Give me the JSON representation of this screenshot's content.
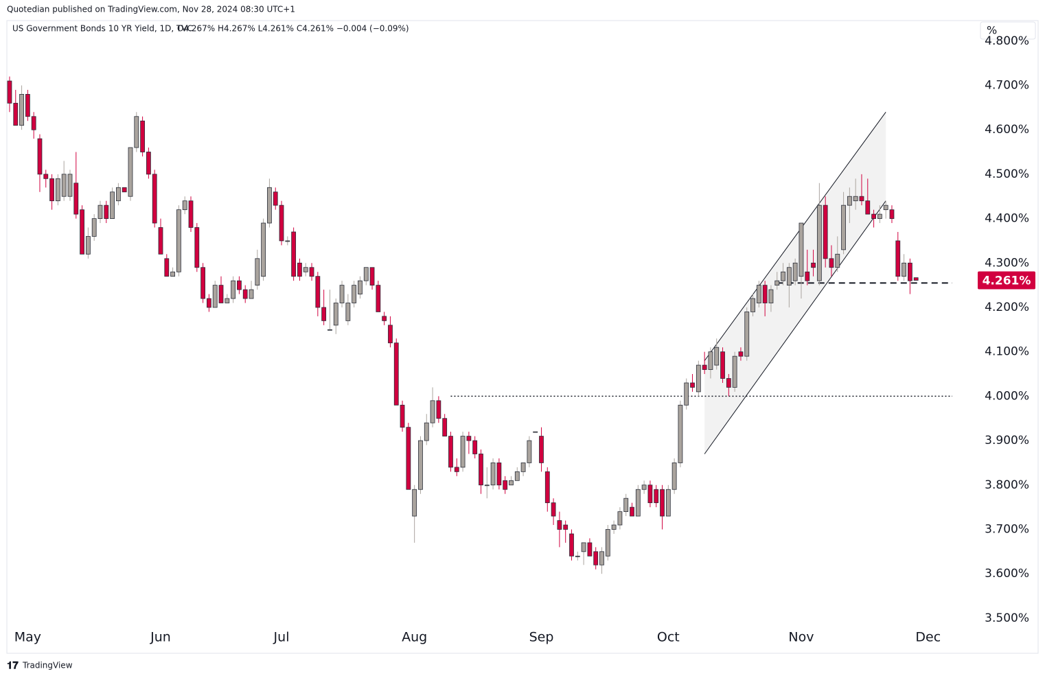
{
  "header": "Quotedian published on TradingView.com, Nov 28, 2024 08:30 UTC+1",
  "footer": "TradingView",
  "unit_button": "%",
  "chart_data": {
    "type": "candlestick",
    "title": "US Government Bonds 10 YR Yield, 1D, TVC",
    "ohlc_summary": "O4.267%  H4.267%  L4.261%  C4.261%  −0.004 (−0.09%)",
    "up_color": "#aaa49e",
    "down_color": "#d1003f",
    "xlim": [
      -0.45,
      159.75
    ],
    "xticks": [
      {
        "value": 3,
        "label": "May"
      },
      {
        "value": 25,
        "label": "Jun"
      },
      {
        "value": 45,
        "label": "Jul"
      },
      {
        "value": 67,
        "label": "Aug"
      },
      {
        "value": 88,
        "label": "Sep"
      },
      {
        "value": 109,
        "label": "Oct"
      },
      {
        "value": 131,
        "label": "Nov"
      },
      {
        "value": 152,
        "label": "Dec"
      }
    ],
    "ylim": [
      3.421,
      4.846
    ],
    "yticks": [
      {
        "value": 3.5,
        "label": "3.500%"
      },
      {
        "value": 3.6,
        "label": "3.600%"
      },
      {
        "value": 3.7,
        "label": "3.700%"
      },
      {
        "value": 3.8,
        "label": "3.800%"
      },
      {
        "value": 3.9,
        "label": "3.900%"
      },
      {
        "value": 4.0,
        "label": "4.000%"
      },
      {
        "value": 4.1,
        "label": "4.100%"
      },
      {
        "value": 4.2,
        "label": "4.200%"
      },
      {
        "value": 4.3,
        "label": "4.300%"
      },
      {
        "value": 4.4,
        "label": "4.400%"
      },
      {
        "value": 4.5,
        "label": "4.500%"
      },
      {
        "value": 4.6,
        "label": "4.600%"
      },
      {
        "value": 4.7,
        "label": "4.700%"
      },
      {
        "value": 4.8,
        "label": "4.800%"
      }
    ],
    "last_price": {
      "value": 4.261,
      "label": "4.261%"
    },
    "channel": {
      "x": [
        115,
        145
      ],
      "upper": [
        4.08,
        4.64
      ],
      "lower": [
        3.87,
        4.44
      ]
    },
    "levels": [
      {
        "value": 4.0,
        "x": [
          73,
          156
        ],
        "style": "dotted"
      },
      {
        "value": 4.255,
        "x": [
          127,
          156
        ],
        "style": "dashed"
      }
    ],
    "ohlc": [
      [
        4.71,
        4.72,
        4.64,
        4.66
      ],
      [
        4.66,
        4.69,
        4.61,
        4.61
      ],
      [
        4.61,
        4.7,
        4.6,
        4.68
      ],
      [
        4.68,
        4.69,
        4.62,
        4.63
      ],
      [
        4.63,
        4.64,
        4.58,
        4.6
      ],
      [
        4.58,
        4.59,
        4.46,
        4.5
      ],
      [
        4.5,
        4.51,
        4.47,
        4.49
      ],
      [
        4.49,
        4.5,
        4.42,
        4.44
      ],
      [
        4.44,
        4.5,
        4.43,
        4.49
      ],
      [
        4.45,
        4.53,
        4.44,
        4.5
      ],
      [
        4.45,
        4.51,
        4.44,
        4.5
      ],
      [
        4.48,
        4.55,
        4.4,
        4.41
      ],
      [
        4.42,
        4.43,
        4.32,
        4.32
      ],
      [
        4.32,
        4.38,
        4.31,
        4.36
      ],
      [
        4.36,
        4.41,
        4.35,
        4.4
      ],
      [
        4.4,
        4.44,
        4.39,
        4.43
      ],
      [
        4.43,
        4.44,
        4.39,
        4.4
      ],
      [
        4.4,
        4.47,
        4.4,
        4.46
      ],
      [
        4.44,
        4.48,
        4.43,
        4.47
      ],
      [
        4.47,
        4.47,
        4.46,
        4.46
      ],
      [
        4.45,
        4.56,
        4.44,
        4.56
      ],
      [
        4.56,
        4.64,
        4.55,
        4.63
      ],
      [
        4.62,
        4.63,
        4.54,
        4.55
      ],
      [
        4.55,
        4.56,
        4.49,
        4.5
      ],
      [
        4.5,
        4.51,
        4.38,
        4.39
      ],
      [
        4.38,
        4.4,
        4.32,
        4.32
      ],
      [
        4.31,
        4.32,
        4.27,
        4.27
      ],
      [
        4.27,
        4.29,
        4.27,
        4.28
      ],
      [
        4.28,
        4.43,
        4.27,
        4.42
      ],
      [
        4.42,
        4.45,
        4.41,
        4.44
      ],
      [
        4.44,
        4.45,
        4.37,
        4.38
      ],
      [
        4.38,
        4.39,
        4.28,
        4.29
      ],
      [
        4.29,
        4.3,
        4.21,
        4.22
      ],
      [
        4.22,
        4.23,
        4.19,
        4.2
      ],
      [
        4.2,
        4.26,
        4.2,
        4.25
      ],
      [
        4.25,
        4.27,
        4.21,
        4.21
      ],
      [
        4.21,
        4.23,
        4.21,
        4.22
      ],
      [
        4.22,
        4.27,
        4.21,
        4.26
      ],
      [
        4.26,
        4.27,
        4.23,
        4.24
      ],
      [
        4.24,
        4.25,
        4.21,
        4.22
      ],
      [
        4.22,
        4.26,
        4.22,
        4.24
      ],
      [
        4.25,
        4.33,
        4.24,
        4.31
      ],
      [
        4.27,
        4.4,
        4.26,
        4.39
      ],
      [
        4.39,
        4.49,
        4.38,
        4.47
      ],
      [
        4.46,
        4.47,
        4.42,
        4.43
      ],
      [
        4.43,
        4.44,
        4.34,
        4.35
      ],
      [
        4.35,
        4.36,
        4.34,
        4.35
      ],
      [
        4.37,
        4.38,
        4.26,
        4.27
      ],
      [
        4.3,
        4.31,
        4.26,
        4.27
      ],
      [
        4.28,
        4.3,
        4.27,
        4.29
      ],
      [
        4.29,
        4.3,
        4.26,
        4.27
      ],
      [
        4.27,
        4.28,
        4.18,
        4.2
      ],
      [
        4.2,
        4.24,
        4.16,
        4.17
      ],
      [
        4.15,
        4.24,
        4.15,
        4.15
      ],
      [
        4.16,
        4.22,
        4.14,
        4.21
      ],
      [
        4.21,
        4.26,
        4.2,
        4.25
      ],
      [
        4.17,
        4.23,
        4.16,
        4.21
      ],
      [
        4.21,
        4.26,
        4.2,
        4.25
      ],
      [
        4.23,
        4.27,
        4.22,
        4.26
      ],
      [
        4.26,
        4.29,
        4.25,
        4.29
      ],
      [
        4.29,
        4.29,
        4.24,
        4.25
      ],
      [
        4.25,
        4.26,
        4.19,
        4.19
      ],
      [
        4.18,
        4.19,
        4.16,
        4.17
      ],
      [
        4.16,
        4.18,
        4.11,
        4.12
      ],
      [
        4.12,
        4.13,
        3.98,
        3.98
      ],
      [
        3.98,
        3.99,
        3.92,
        3.93
      ],
      [
        3.93,
        3.94,
        3.79,
        3.79
      ],
      [
        3.73,
        3.8,
        3.67,
        3.79
      ],
      [
        3.79,
        3.91,
        3.78,
        3.9
      ],
      [
        3.9,
        3.96,
        3.89,
        3.94
      ],
      [
        3.94,
        4.02,
        3.93,
        3.99
      ],
      [
        3.99,
        4.0,
        3.94,
        3.95
      ],
      [
        3.95,
        3.96,
        3.91,
        3.91
      ],
      [
        3.91,
        3.92,
        3.83,
        3.84
      ],
      [
        3.84,
        3.86,
        3.82,
        3.83
      ],
      [
        3.84,
        3.92,
        3.83,
        3.91
      ],
      [
        3.91,
        3.92,
        3.87,
        3.9
      ],
      [
        3.9,
        3.91,
        3.86,
        3.87
      ],
      [
        3.87,
        3.88,
        3.78,
        3.8
      ],
      [
        3.8,
        3.84,
        3.77,
        3.8
      ],
      [
        3.8,
        3.86,
        3.79,
        3.85
      ],
      [
        3.85,
        3.86,
        3.79,
        3.8
      ],
      [
        3.81,
        3.82,
        3.78,
        3.79
      ],
      [
        3.8,
        3.82,
        3.8,
        3.81
      ],
      [
        3.81,
        3.84,
        3.81,
        3.83
      ],
      [
        3.83,
        3.85,
        3.82,
        3.85
      ],
      [
        3.85,
        3.91,
        3.84,
        3.9
      ],
      [
        3.92,
        3.92,
        3.92,
        3.92
      ],
      [
        3.91,
        3.93,
        3.83,
        3.85
      ],
      [
        3.83,
        3.84,
        3.74,
        3.76
      ],
      [
        3.76,
        3.77,
        3.71,
        3.73
      ],
      [
        3.72,
        3.74,
        3.66,
        3.7
      ],
      [
        3.71,
        3.72,
        3.67,
        3.7
      ],
      [
        3.69,
        3.7,
        3.63,
        3.64
      ],
      [
        3.64,
        3.65,
        3.63,
        3.64
      ],
      [
        3.65,
        3.67,
        3.62,
        3.67
      ],
      [
        3.67,
        3.68,
        3.64,
        3.64
      ],
      [
        3.65,
        3.66,
        3.61,
        3.62
      ],
      [
        3.62,
        3.66,
        3.6,
        3.65
      ],
      [
        3.64,
        3.71,
        3.63,
        3.7
      ],
      [
        3.7,
        3.72,
        3.69,
        3.71
      ],
      [
        3.71,
        3.75,
        3.7,
        3.74
      ],
      [
        3.74,
        3.78,
        3.73,
        3.77
      ],
      [
        3.75,
        3.76,
        3.73,
        3.73
      ],
      [
        3.73,
        3.8,
        3.73,
        3.79
      ],
      [
        3.79,
        3.81,
        3.78,
        3.8
      ],
      [
        3.8,
        3.81,
        3.75,
        3.76
      ],
      [
        3.79,
        3.8,
        3.75,
        3.76
      ],
      [
        3.79,
        3.8,
        3.7,
        3.73
      ],
      [
        3.73,
        3.8,
        3.73,
        3.79
      ],
      [
        3.79,
        3.86,
        3.78,
        3.85
      ],
      [
        3.85,
        3.99,
        3.84,
        3.98
      ],
      [
        3.98,
        4.04,
        3.97,
        4.03
      ],
      [
        4.03,
        4.05,
        4.01,
        4.02
      ],
      [
        4.01,
        4.08,
        4.0,
        4.07
      ],
      [
        4.07,
        4.1,
        4.05,
        4.06
      ],
      [
        4.06,
        4.11,
        4.04,
        4.1
      ],
      [
        4.07,
        4.13,
        4.06,
        4.11
      ],
      [
        4.1,
        4.11,
        4.03,
        4.04
      ],
      [
        4.04,
        4.05,
        4.0,
        4.02
      ],
      [
        4.02,
        4.1,
        4.01,
        4.09
      ],
      [
        4.1,
        4.11,
        4.08,
        4.09
      ],
      [
        4.09,
        4.2,
        4.08,
        4.19
      ],
      [
        4.19,
        4.23,
        4.18,
        4.22
      ],
      [
        4.21,
        4.26,
        4.2,
        4.25
      ],
      [
        4.25,
        4.26,
        4.18,
        4.21
      ],
      [
        4.21,
        4.25,
        4.19,
        4.24
      ],
      [
        4.25,
        4.28,
        4.24,
        4.26
      ],
      [
        4.26,
        4.3,
        4.25,
        4.28
      ],
      [
        4.25,
        4.3,
        4.2,
        4.29
      ],
      [
        4.26,
        4.31,
        4.25,
        4.3
      ],
      [
        4.27,
        4.39,
        4.22,
        4.39
      ],
      [
        4.28,
        4.33,
        4.25,
        4.26
      ],
      [
        4.3,
        4.33,
        4.27,
        4.29
      ],
      [
        4.26,
        4.48,
        4.25,
        4.43
      ],
      [
        4.43,
        4.45,
        4.29,
        4.31
      ],
      [
        4.31,
        4.34,
        4.27,
        4.29
      ],
      [
        4.29,
        4.36,
        4.28,
        4.32
      ],
      [
        4.33,
        4.46,
        4.32,
        4.43
      ],
      [
        4.43,
        4.47,
        4.39,
        4.45
      ],
      [
        4.44,
        4.49,
        4.42,
        4.45
      ],
      [
        4.45,
        4.5,
        4.43,
        4.44
      ],
      [
        4.44,
        4.49,
        4.41,
        4.41
      ],
      [
        4.41,
        4.42,
        4.38,
        4.4
      ],
      [
        4.4,
        4.43,
        4.39,
        4.41
      ],
      [
        4.42,
        4.44,
        4.4,
        4.43
      ],
      [
        4.42,
        4.43,
        4.39,
        4.4
      ],
      [
        4.35,
        4.37,
        4.26,
        4.27
      ],
      [
        4.27,
        4.32,
        4.26,
        4.3
      ],
      [
        4.3,
        4.31,
        4.23,
        4.26
      ],
      [
        4.267,
        4.267,
        4.261,
        4.261
      ]
    ]
  }
}
